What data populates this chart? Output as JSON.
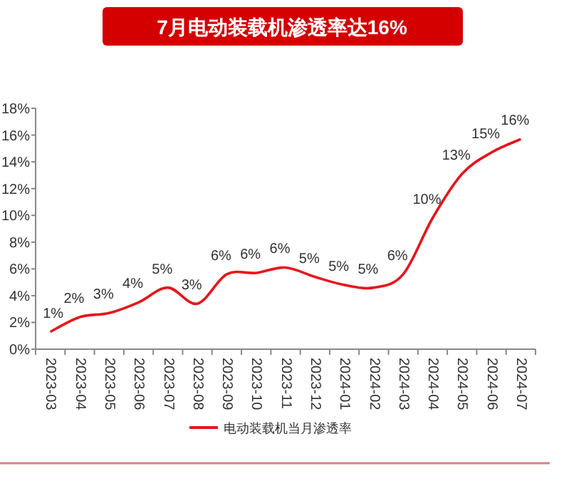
{
  "chart_data": {
    "type": "line",
    "title": "7月电动装载机渗透率达16%",
    "categories": [
      "2023-03",
      "2023-04",
      "2023-05",
      "2023-06",
      "2023-07",
      "2023-08",
      "2023-09",
      "2023-10",
      "2023-11",
      "2023-12",
      "2024-01",
      "2024-02",
      "2024-03",
      "2024-04",
      "2024-05",
      "2024-06",
      "2024-07"
    ],
    "series": [
      {
        "name": "电动装载机当月渗透率",
        "color": "#e8141c",
        "values": [
          1.3,
          2.4,
          2.7,
          3.5,
          4.6,
          3.4,
          5.6,
          5.7,
          6.1,
          5.4,
          4.8,
          4.6,
          5.6,
          9.8,
          13.1,
          14.7,
          15.7
        ],
        "value_labels": [
          "1%",
          "2%",
          "3%",
          "4%",
          "5%",
          "3%",
          "6%",
          "6%",
          "6%",
          "5%",
          "5%",
          "5%",
          "6%",
          "10%",
          "13%",
          "15%",
          "16%"
        ]
      }
    ],
    "ylim": [
      0,
      18
    ],
    "yticks": [
      {
        "value": 0,
        "label": "0%"
      },
      {
        "value": 2,
        "label": "2%"
      },
      {
        "value": 4,
        "label": "4%"
      },
      {
        "value": 6,
        "label": "6%"
      },
      {
        "value": 8,
        "label": "8%"
      },
      {
        "value": 10,
        "label": "10%"
      },
      {
        "value": 12,
        "label": "12%"
      },
      {
        "value": 14,
        "label": "14%"
      },
      {
        "value": 16,
        "label": "16%"
      },
      {
        "value": 18,
        "label": "18%"
      }
    ],
    "legend": "bottom",
    "grid": false
  }
}
